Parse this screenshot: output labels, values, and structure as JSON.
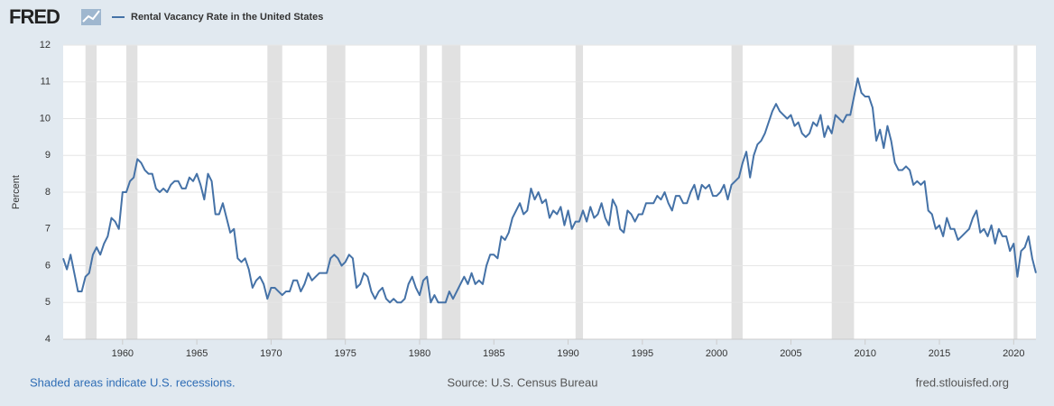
{
  "logo": "FRED",
  "footer": {
    "left": "Shaded areas indicate U.S. recessions.",
    "center": "Source: U.S. Census Bureau",
    "right": "fred.stlouisfed.org"
  },
  "chart_data": {
    "type": "line",
    "ylabel": "Percent",
    "series": [
      {
        "name": "Rental Vacancy Rate in the United States",
        "color": "#4572a7",
        "values": [
          6.2,
          5.9,
          6.3,
          5.8,
          5.3,
          5.3,
          5.7,
          5.8,
          6.3,
          6.5,
          6.3,
          6.6,
          6.8,
          7.3,
          7.2,
          7.0,
          8.0,
          8.0,
          8.3,
          8.4,
          8.9,
          8.8,
          8.6,
          8.5,
          8.5,
          8.1,
          8.0,
          8.1,
          8.0,
          8.2,
          8.3,
          8.3,
          8.1,
          8.1,
          8.4,
          8.3,
          8.5,
          8.2,
          7.8,
          8.5,
          8.3,
          7.4,
          7.4,
          7.7,
          7.3,
          6.9,
          7.0,
          6.2,
          6.1,
          6.2,
          5.9,
          5.4,
          5.6,
          5.7,
          5.5,
          5.1,
          5.4,
          5.4,
          5.3,
          5.2,
          5.3,
          5.3,
          5.6,
          5.6,
          5.3,
          5.5,
          5.8,
          5.6,
          5.7,
          5.8,
          5.8,
          5.8,
          6.2,
          6.3,
          6.2,
          6.0,
          6.1,
          6.3,
          6.2,
          5.4,
          5.5,
          5.8,
          5.7,
          5.3,
          5.1,
          5.3,
          5.4,
          5.1,
          5.0,
          5.1,
          5.0,
          5.0,
          5.1,
          5.5,
          5.7,
          5.4,
          5.2,
          5.6,
          5.7,
          5.0,
          5.2,
          5.0,
          5.0,
          5.0,
          5.3,
          5.1,
          5.3,
          5.5,
          5.7,
          5.5,
          5.8,
          5.5,
          5.6,
          5.5,
          6.0,
          6.3,
          6.3,
          6.2,
          6.8,
          6.7,
          6.9,
          7.3,
          7.5,
          7.7,
          7.4,
          7.5,
          8.1,
          7.8,
          8.0,
          7.7,
          7.8,
          7.3,
          7.5,
          7.4,
          7.6,
          7.1,
          7.5,
          7.0,
          7.2,
          7.2,
          7.5,
          7.2,
          7.6,
          7.3,
          7.4,
          7.7,
          7.3,
          7.1,
          7.8,
          7.6,
          7.0,
          6.9,
          7.5,
          7.4,
          7.2,
          7.4,
          7.4,
          7.7,
          7.7,
          7.7,
          7.9,
          7.8,
          8.0,
          7.7,
          7.5,
          7.9,
          7.9,
          7.7,
          7.7,
          8.0,
          8.2,
          7.8,
          8.2,
          8.1,
          8.2,
          7.9,
          7.9,
          8.0,
          8.2,
          7.8,
          8.2,
          8.3,
          8.4,
          8.8,
          9.1,
          8.4,
          9.0,
          9.3,
          9.4,
          9.6,
          9.9,
          10.2,
          10.4,
          10.2,
          10.1,
          10.0,
          10.1,
          9.8,
          9.9,
          9.6,
          9.5,
          9.6,
          9.9,
          9.8,
          10.1,
          9.5,
          9.8,
          9.6,
          10.1,
          10.0,
          9.9,
          10.1,
          10.1,
          10.6,
          11.1,
          10.7,
          10.6,
          10.6,
          10.3,
          9.4,
          9.7,
          9.2,
          9.8,
          9.4,
          8.8,
          8.6,
          8.6,
          8.7,
          8.6,
          8.2,
          8.3,
          8.2,
          8.3,
          7.5,
          7.4,
          7.0,
          7.1,
          6.8,
          7.3,
          7.0,
          7.0,
          6.7,
          6.8,
          6.9,
          7.0,
          7.3,
          7.5,
          6.9,
          7.0,
          6.8,
          7.1,
          6.6,
          7.0,
          6.8,
          6.8,
          6.4,
          6.6,
          5.7,
          6.4,
          6.5,
          6.8,
          6.2,
          5.8
        ]
      }
    ],
    "x": [
      1956,
      1956.25,
      1956.5,
      1956.75,
      1957,
      1957.25,
      1957.5,
      1957.75,
      1958,
      1958.25,
      1958.5,
      1958.75,
      1959,
      1959.25,
      1959.5,
      1959.75,
      1960,
      1960.25,
      1960.5,
      1960.75,
      1961,
      1961.25,
      1961.5,
      1961.75,
      1962,
      1962.25,
      1962.5,
      1962.75,
      1963,
      1963.25,
      1963.5,
      1963.75,
      1964,
      1964.25,
      1964.5,
      1964.75,
      1965,
      1965.25,
      1965.5,
      1965.75,
      1966,
      1966.25,
      1966.5,
      1966.75,
      1967,
      1967.25,
      1967.5,
      1967.75,
      1968,
      1968.25,
      1968.5,
      1968.75,
      1969,
      1969.25,
      1969.5,
      1969.75,
      1970,
      1970.25,
      1970.5,
      1970.75,
      1971,
      1971.25,
      1971.5,
      1971.75,
      1972,
      1972.25,
      1972.5,
      1972.75,
      1973,
      1973.25,
      1973.5,
      1973.75,
      1974,
      1974.25,
      1974.5,
      1974.75,
      1975,
      1975.25,
      1975.5,
      1975.75,
      1976,
      1976.25,
      1976.5,
      1976.75,
      1977,
      1977.25,
      1977.5,
      1977.75,
      1978,
      1978.25,
      1978.5,
      1978.75,
      1979,
      1979.25,
      1979.5,
      1979.75,
      1980,
      1980.25,
      1980.5,
      1980.75,
      1981,
      1981.25,
      1981.5,
      1981.75,
      1982,
      1982.25,
      1982.5,
      1982.75,
      1983,
      1983.25,
      1983.5,
      1983.75,
      1984,
      1984.25,
      1984.5,
      1984.75,
      1985,
      1985.25,
      1985.5,
      1985.75,
      1986,
      1986.25,
      1986.5,
      1986.75,
      1987,
      1987.25,
      1987.5,
      1987.75,
      1988,
      1988.25,
      1988.5,
      1988.75,
      1989,
      1989.25,
      1989.5,
      1989.75,
      1990,
      1990.25,
      1990.5,
      1990.75,
      1991,
      1991.25,
      1991.5,
      1991.75,
      1992,
      1992.25,
      1992.5,
      1992.75,
      1993,
      1993.25,
      1993.5,
      1993.75,
      1994,
      1994.25,
      1994.5,
      1994.75,
      1995,
      1995.25,
      1995.5,
      1995.75,
      1996,
      1996.25,
      1996.5,
      1996.75,
      1997,
      1997.25,
      1997.5,
      1997.75,
      1998,
      1998.25,
      1998.5,
      1998.75,
      1999,
      1999.25,
      1999.5,
      1999.75,
      2000,
      2000.25,
      2000.5,
      2000.75,
      2001,
      2001.25,
      2001.5,
      2001.75,
      2002,
      2002.25,
      2002.5,
      2002.75,
      2003,
      2003.25,
      2003.5,
      2003.75,
      2004,
      2004.25,
      2004.5,
      2004.75,
      2005,
      2005.25,
      2005.5,
      2005.75,
      2006,
      2006.25,
      2006.5,
      2006.75,
      2007,
      2007.25,
      2007.5,
      2007.75,
      2008,
      2008.25,
      2008.5,
      2008.75,
      2009,
      2009.25,
      2009.5,
      2009.75,
      2010,
      2010.25,
      2010.5,
      2010.75,
      2011,
      2011.25,
      2011.5,
      2011.75,
      2012,
      2012.25,
      2012.5,
      2012.75,
      2013,
      2013.25,
      2013.5,
      2013.75,
      2014,
      2014.25,
      2014.5,
      2014.75,
      2015,
      2015.25,
      2015.5,
      2015.75,
      2016,
      2016.25,
      2016.5,
      2016.75,
      2017,
      2017.25,
      2017.5,
      2017.75,
      2018,
      2018.25,
      2018.5,
      2018.75,
      2019,
      2019.25,
      2019.5,
      2019.75,
      2020,
      2020.25,
      2020.5,
      2020.75,
      2021,
      2021.25,
      2021.5
    ],
    "recessions": [
      [
        1957.5,
        1958.25
      ],
      [
        1960.25,
        1961.0
      ],
      [
        1969.75,
        1970.75
      ],
      [
        1973.75,
        1975.0
      ],
      [
        1980.0,
        1980.5
      ],
      [
        1981.5,
        1982.75
      ],
      [
        1990.5,
        1991.0
      ],
      [
        2001.0,
        2001.75
      ],
      [
        2007.75,
        2009.25
      ],
      [
        2020.0,
        2020.25
      ]
    ],
    "recession_color": "#e1e1e1",
    "xlim": [
      1956,
      2021.5
    ],
    "xticks": [
      1960,
      1965,
      1970,
      1975,
      1980,
      1985,
      1990,
      1995,
      2000,
      2005,
      2010,
      2015,
      2020
    ],
    "ylim": [
      4,
      12
    ],
    "yticks": [
      4,
      5,
      6,
      7,
      8,
      9,
      10,
      11,
      12
    ],
    "grid": true
  }
}
